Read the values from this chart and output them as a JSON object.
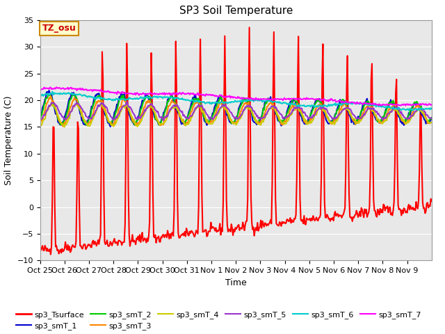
{
  "title": "SP3 Soil Temperature",
  "ylabel": "Soil Temperature (C)",
  "xlabel": "Time",
  "ylim": [
    -10,
    35
  ],
  "xlim": [
    0,
    16
  ],
  "background_color": "#ffffff",
  "plot_bg_color": "#e8e8e8",
  "tz_label": "TZ_osu",
  "x_tick_labels": [
    "Oct 25",
    "Oct 26",
    "Oct 27",
    "Oct 28",
    "Oct 29",
    "Oct 30",
    "Oct 31",
    "Nov 1",
    "Nov 2",
    "Nov 3",
    "Nov 4",
    "Nov 5",
    "Nov 6",
    "Nov 7",
    "Nov 8",
    "Nov 9"
  ],
  "series_names": [
    "sp3_Tsurface",
    "sp3_smT_1",
    "sp3_smT_2",
    "sp3_smT_3",
    "sp3_smT_4",
    "sp3_smT_5",
    "sp3_smT_6",
    "sp3_smT_7"
  ],
  "series_colors": [
    "#ff0000",
    "#0000cc",
    "#00cc00",
    "#ff8800",
    "#cccc00",
    "#9933cc",
    "#00cccc",
    "#ff00ff"
  ],
  "series_linewidths": [
    1.5,
    1.5,
    1.5,
    1.5,
    1.5,
    1.5,
    1.5,
    1.5
  ],
  "yticks": [
    -10,
    -5,
    0,
    5,
    10,
    15,
    20,
    25,
    30,
    35
  ],
  "grid_color": "#ffffff",
  "title_fontsize": 11,
  "axis_fontsize": 9,
  "tick_fontsize": 8,
  "legend_ncol_row1": 6,
  "legend_ncol_row2": 2
}
